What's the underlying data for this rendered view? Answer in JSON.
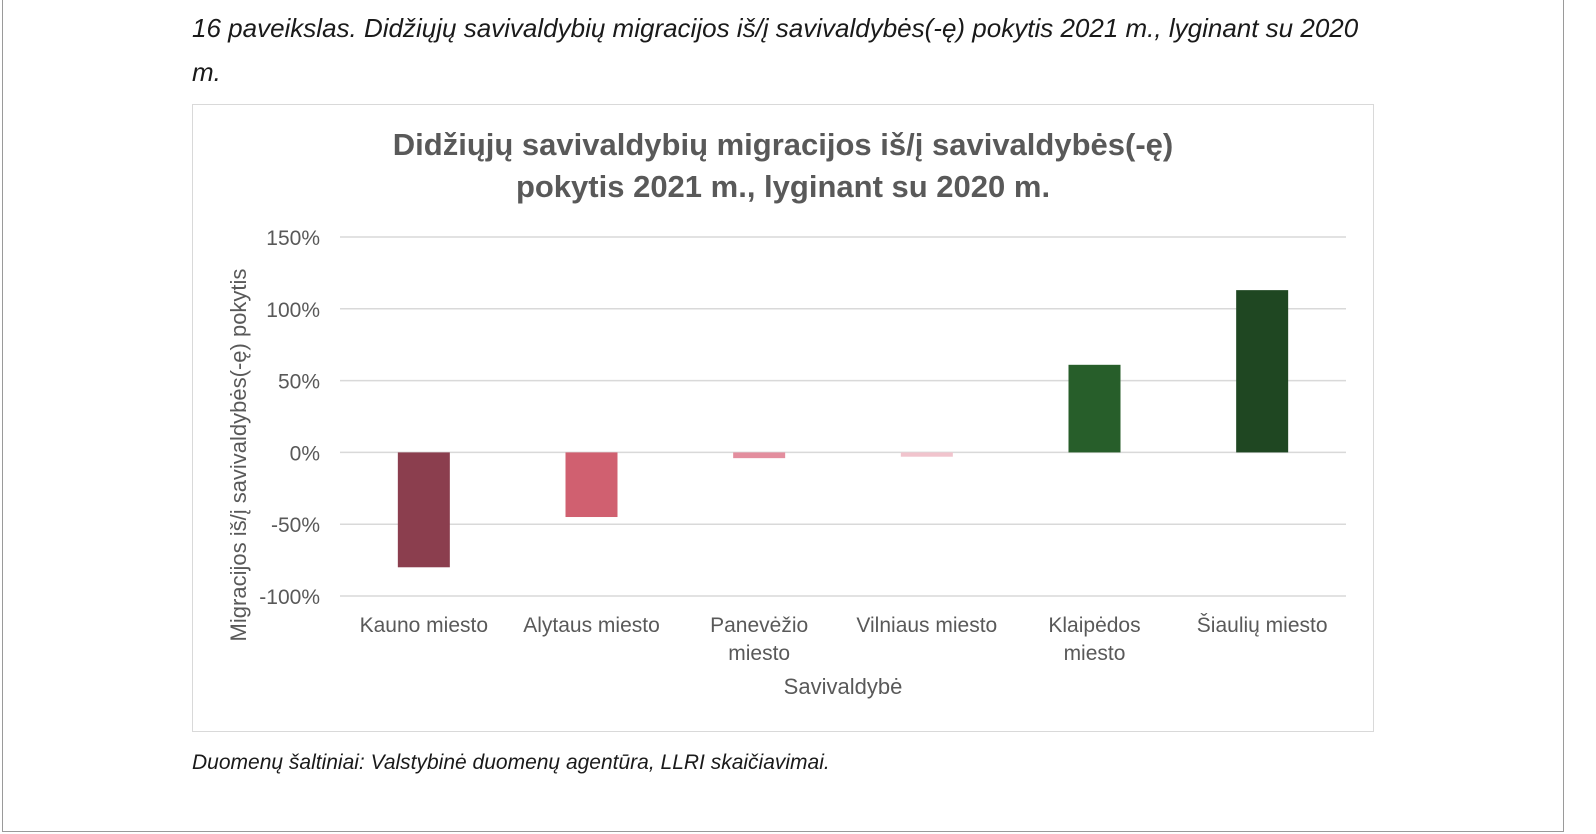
{
  "caption": "16 paveikslas. Didžiųjų savivaldybių migracijos iš/į savivaldybės(-ę) pokytis 2021 m., lyginant su 2020 m.",
  "source_note": "Duomenų šaltiniai: Valstybinė duomenų agentūra, LLRI skaičiavimai.",
  "chart_data": {
    "type": "bar",
    "title_lines": [
      "Didžiųjų savivaldybių migracijos iš/į savivaldybės(-ę)",
      "pokytis 2021 m., lyginant su 2020 m."
    ],
    "xlabel": "Savivaldybė",
    "ylabel": "Migracijos iš/į savivaldybės(-ę) pokytis",
    "categories": [
      [
        "Kauno miesto"
      ],
      [
        "Alytaus miesto"
      ],
      [
        "Panevėžio",
        "miesto"
      ],
      [
        "Vilniaus miesto"
      ],
      [
        "Klaipėdos",
        "miesto"
      ],
      [
        "Šiaulių miesto"
      ]
    ],
    "values": [
      -80,
      -45,
      -4,
      -3,
      61,
      113
    ],
    "colors": [
      "#8b3e4e",
      "#d06070",
      "#e38e9e",
      "#f1c4cd",
      "#275e2a",
      "#1f4722"
    ],
    "ylim": [
      -100,
      150
    ],
    "ytick_step": 50,
    "ytick_suffix": "%",
    "grid": true,
    "legend": false
  }
}
